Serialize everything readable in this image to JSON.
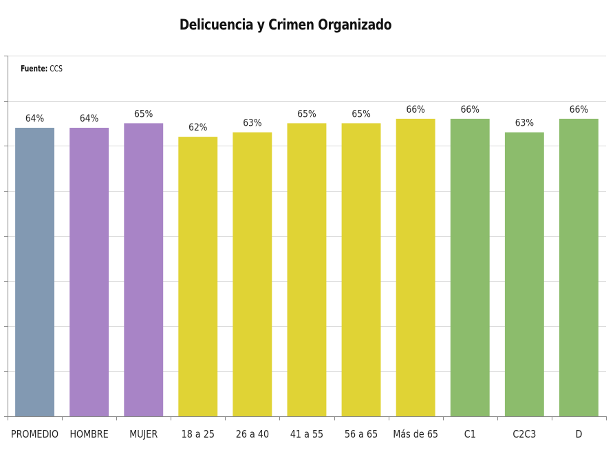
{
  "chart_data": {
    "type": "bar",
    "title": "Delicuencia y Crimen Organizado",
    "source_label": "Fuente:",
    "source_value": "CCS",
    "categories": [
      "PROMEDIO",
      "HOMBRE",
      "MUJER",
      "18 a 25",
      "26 a 40",
      "41 a 55",
      "56 a 65",
      "Más de 65",
      "C1",
      "C2C3",
      "D"
    ],
    "values": [
      64,
      64,
      65,
      62,
      63,
      65,
      65,
      66,
      66,
      63,
      66
    ],
    "value_labels": [
      "64%",
      "64%",
      "65%",
      "62%",
      "63%",
      "65%",
      "65%",
      "66%",
      "66%",
      "63%",
      "66%"
    ],
    "colors": [
      "#8299b2",
      "#a884c6",
      "#a884c6",
      "#e0d335",
      "#e0d335",
      "#e0d335",
      "#e0d335",
      "#e0d335",
      "#8cbc6c",
      "#8cbc6c",
      "#8cbc6c"
    ],
    "ylim": [
      0,
      80
    ],
    "ytick_step": 10,
    "show_ytick_labels": false,
    "grid": true,
    "xlabel": "",
    "ylabel": ""
  }
}
